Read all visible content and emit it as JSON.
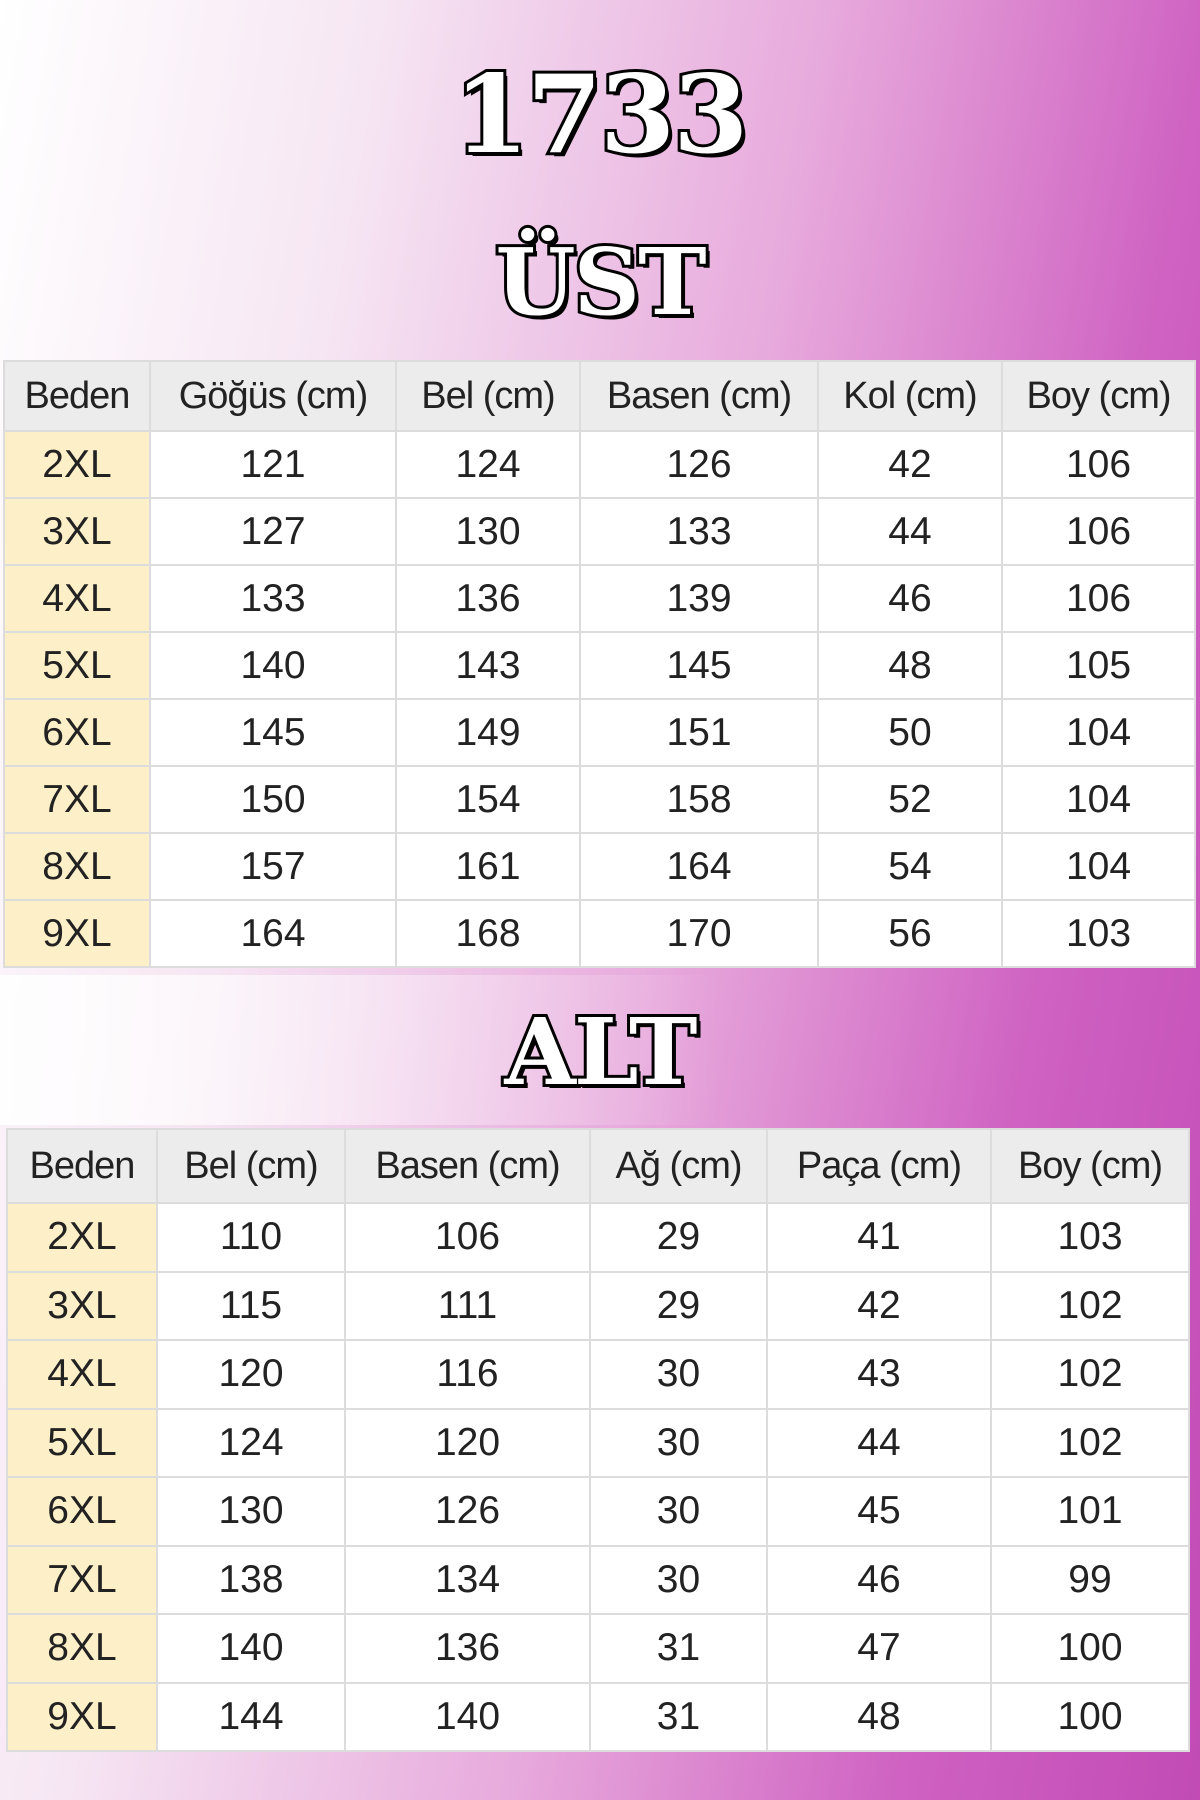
{
  "header": {
    "code": "1733",
    "top_title": "ÜST",
    "bottom_title": "ALT"
  },
  "colors": {
    "size_cell": "#fdefc8",
    "header_cell": "#ececec",
    "accent": "#c24bb6"
  },
  "top_table": {
    "columns": [
      "Beden",
      "Göğüs (cm)",
      "Bel (cm)",
      "Basen (cm)",
      "Kol (cm)",
      "Boy (cm)"
    ],
    "rows": [
      [
        "2XL",
        "121",
        "124",
        "126",
        "42",
        "106"
      ],
      [
        "3XL",
        "127",
        "130",
        "133",
        "44",
        "106"
      ],
      [
        "4XL",
        "133",
        "136",
        "139",
        "46",
        "106"
      ],
      [
        "5XL",
        "140",
        "143",
        "145",
        "48",
        "105"
      ],
      [
        "6XL",
        "145",
        "149",
        "151",
        "50",
        "104"
      ],
      [
        "7XL",
        "150",
        "154",
        "158",
        "52",
        "104"
      ],
      [
        "8XL",
        "157",
        "161",
        "164",
        "54",
        "104"
      ],
      [
        "9XL",
        "164",
        "168",
        "170",
        "56",
        "103"
      ]
    ]
  },
  "bottom_table": {
    "columns": [
      "Beden",
      "Bel (cm)",
      "Basen (cm)",
      "Ağ (cm)",
      "Paça (cm)",
      "Boy (cm)"
    ],
    "rows": [
      [
        "2XL",
        "110",
        "106",
        "29",
        "41",
        "103"
      ],
      [
        "3XL",
        "115",
        "111",
        "29",
        "42",
        "102"
      ],
      [
        "4XL",
        "120",
        "116",
        "30",
        "43",
        "102"
      ],
      [
        "5XL",
        "124",
        "120",
        "30",
        "44",
        "102"
      ],
      [
        "6XL",
        "130",
        "126",
        "30",
        "45",
        "101"
      ],
      [
        "7XL",
        "138",
        "134",
        "30",
        "46",
        "99"
      ],
      [
        "8XL",
        "140",
        "136",
        "31",
        "47",
        "100"
      ],
      [
        "9XL",
        "144",
        "140",
        "31",
        "48",
        "100"
      ]
    ]
  }
}
